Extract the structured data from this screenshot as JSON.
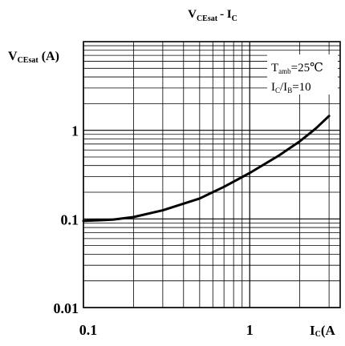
{
  "chart_data": {
    "type": "line",
    "title": "V_CEsat - I_C",
    "title_main": "V",
    "title_sub": "CEsat",
    "title_tail": "- I",
    "title_tail_sub": "C",
    "ylabel_main": "V",
    "ylabel_sub": "CEsat",
    "ylabel_tail": " (A)",
    "xlabel_main": "I",
    "xlabel_sub": "C",
    "xlabel_tail": "(A",
    "x_scale": "log",
    "y_scale": "log",
    "xlim": [
      0.1,
      3.5
    ],
    "ylim": [
      0.01,
      10
    ],
    "x_ticks": [
      "0.1",
      "1"
    ],
    "y_ticks": [
      "0.01",
      "0.1",
      "1"
    ],
    "grid": true,
    "annotations": {
      "line1_main": "T",
      "line1_sub": "amb",
      "line1_tail": "=25℃",
      "line2_a": "I",
      "line2_a_sub": "C",
      "line2_b": "/I",
      "line2_b_sub": "B",
      "line2_tail": "=10"
    },
    "series": [
      {
        "x": [
          0.1,
          0.15,
          0.2,
          0.3,
          0.5,
          0.7,
          1.0,
          1.5,
          2.0,
          2.5,
          3.0
        ],
        "y": [
          0.095,
          0.098,
          0.105,
          0.125,
          0.17,
          0.23,
          0.33,
          0.52,
          0.75,
          1.05,
          1.45
        ]
      }
    ]
  }
}
